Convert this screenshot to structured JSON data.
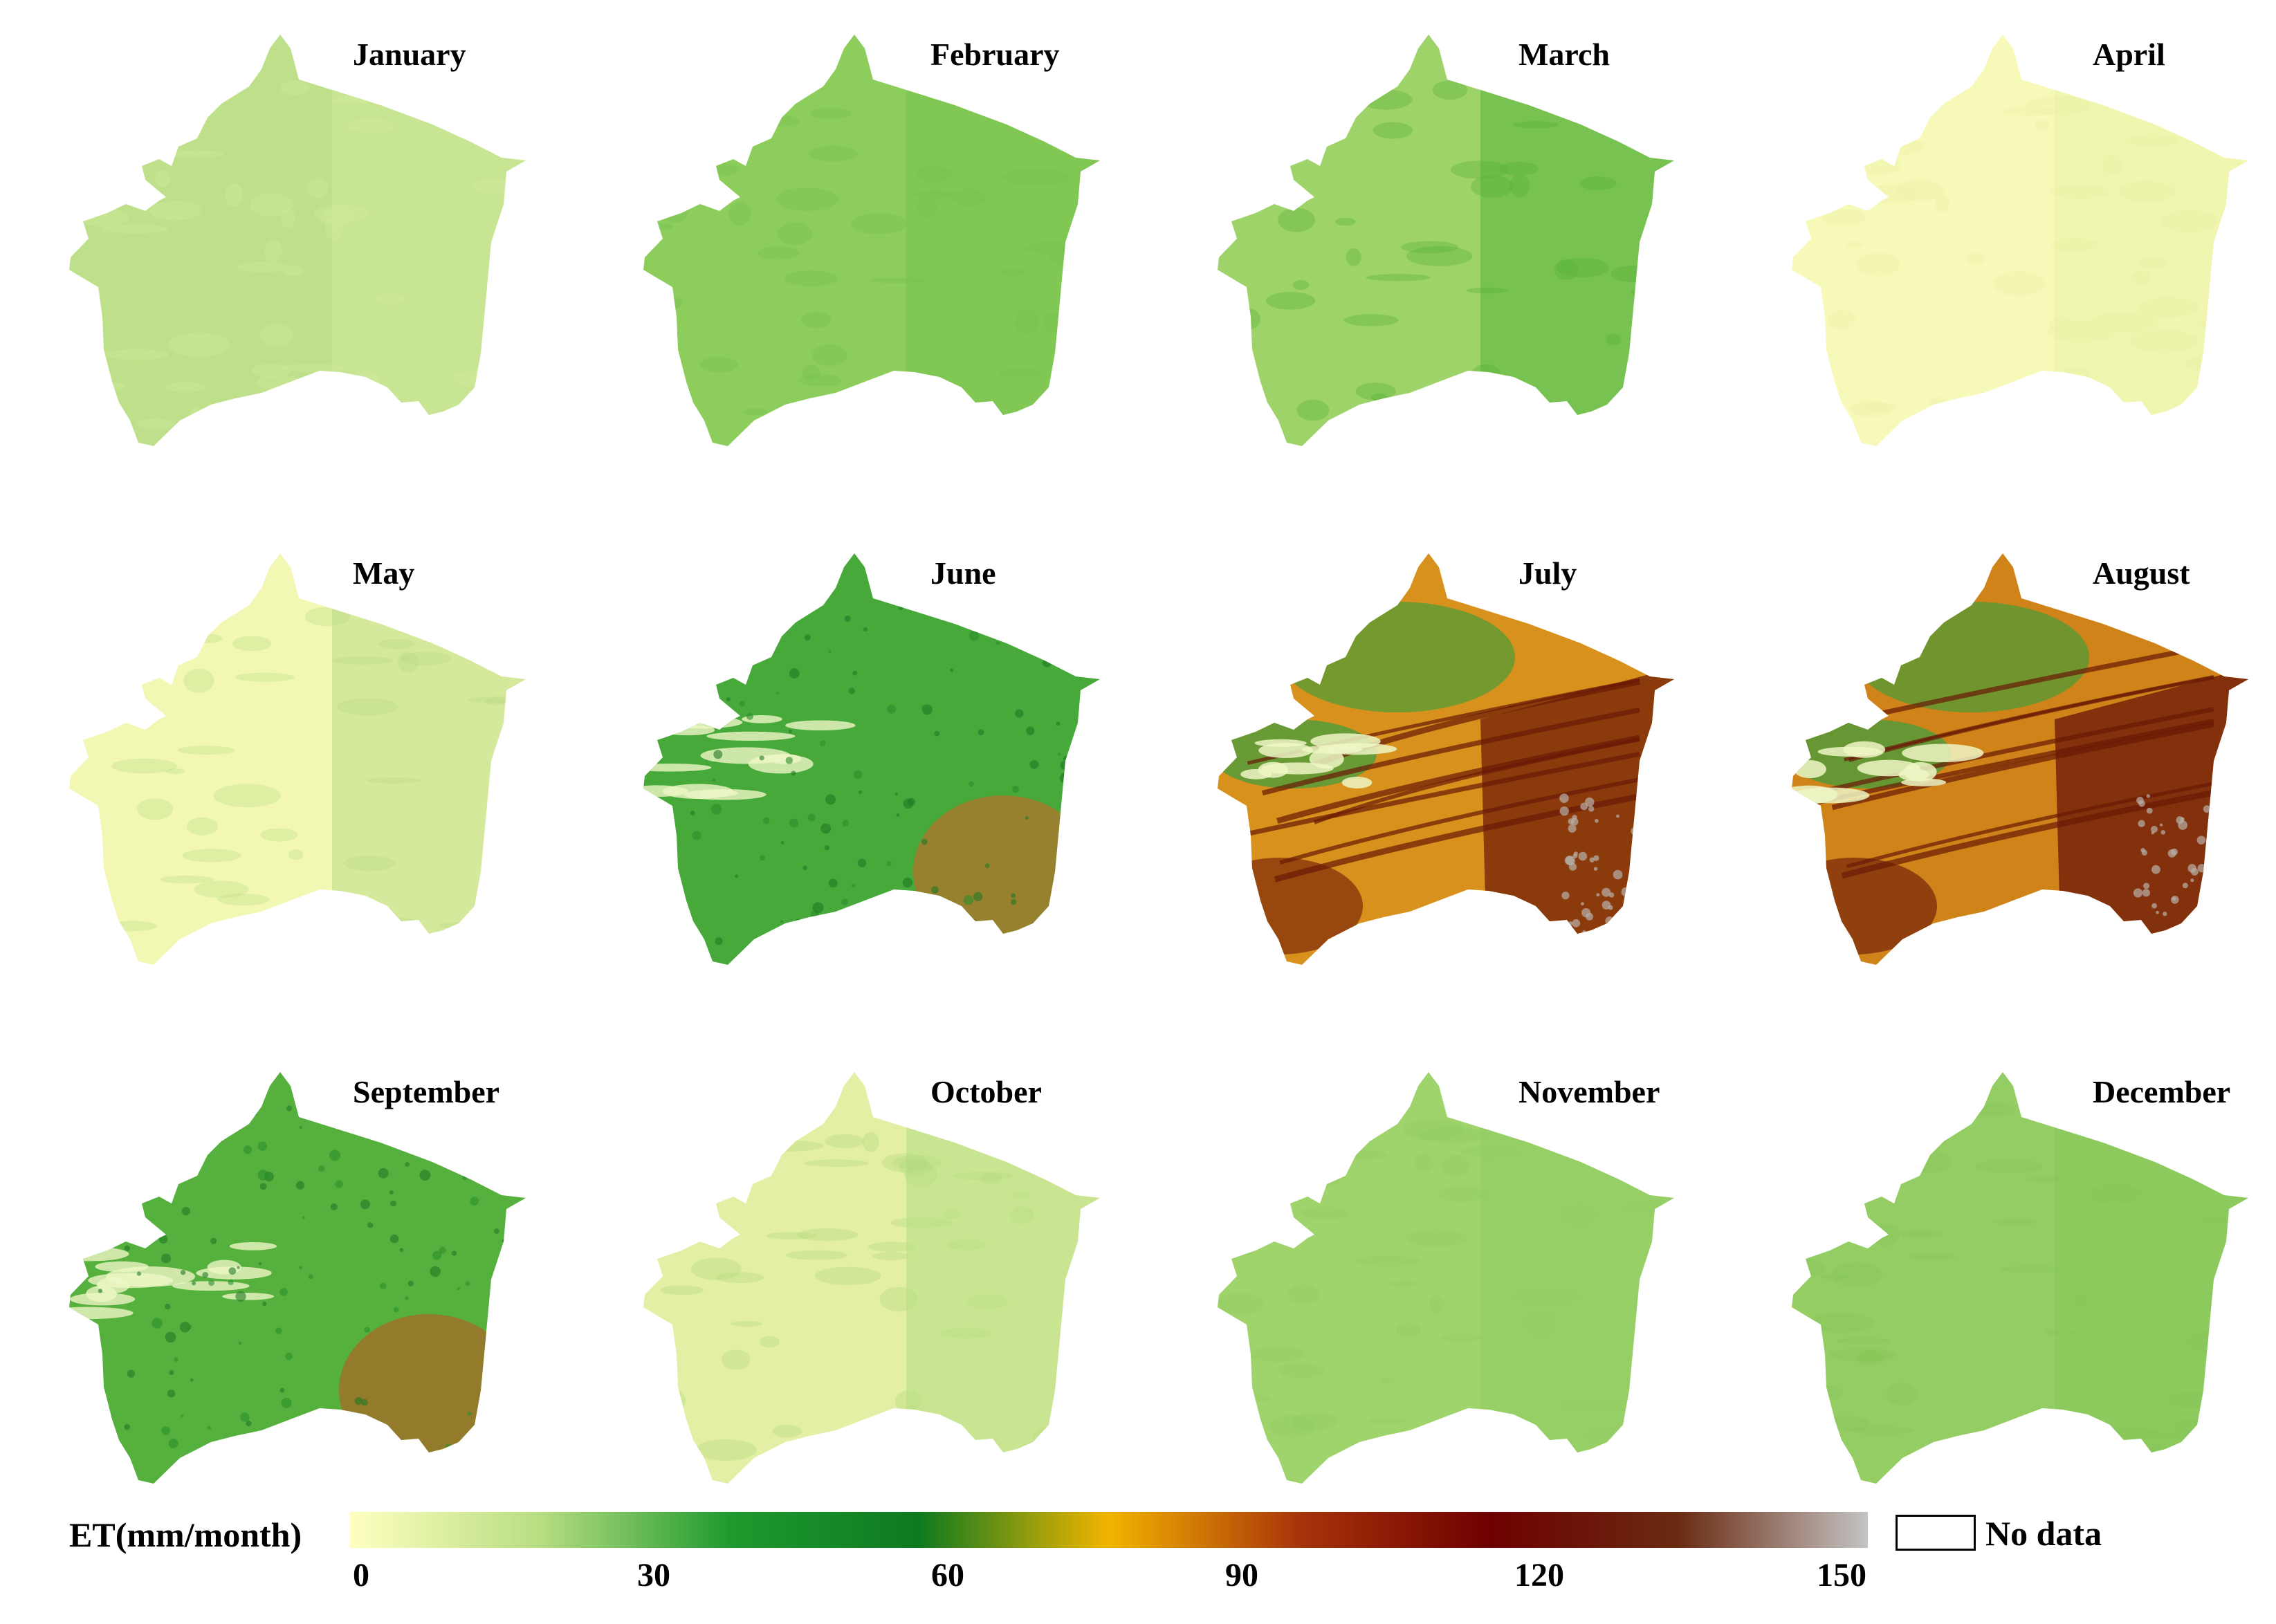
{
  "panels": [
    {
      "title": "January",
      "style": "uniform",
      "base": "#bfe08a",
      "accent": "#d2ea9e"
    },
    {
      "title": "February",
      "style": "uniform",
      "base": "#8ccd5c",
      "accent": "#76c24c"
    },
    {
      "title": "March",
      "style": "uniform",
      "base": "#9ed36a",
      "accent": "#52b137"
    },
    {
      "title": "April",
      "style": "uniform",
      "base": "#f7f9b8",
      "accent": "#eaf2a6"
    },
    {
      "title": "May",
      "style": "uniform",
      "base": "#f3f7b4",
      "accent": "#b7dc83"
    },
    {
      "title": "June",
      "style": "green",
      "base": "#47a93a",
      "accent": "#b1742c"
    },
    {
      "title": "July",
      "style": "hot",
      "base": "#d8911c",
      "accent": "#7e2a08"
    },
    {
      "title": "August",
      "style": "hot",
      "base": "#cf8318",
      "accent": "#75230a"
    },
    {
      "title": "September",
      "style": "green",
      "base": "#56b03e",
      "accent": "#a86a26"
    },
    {
      "title": "October",
      "style": "uniform",
      "base": "#e2efa4",
      "accent": "#b2db7d"
    },
    {
      "title": "November",
      "style": "uniform",
      "base": "#9fd36c",
      "accent": "#8fcb62"
    },
    {
      "title": "December",
      "style": "uniform",
      "base": "#93cd63",
      "accent": "#86c75a"
    }
  ],
  "legend": {
    "label": "ET(mm/month)",
    "ticks": [
      "0",
      "30",
      "60",
      "90",
      "120",
      "150"
    ],
    "nodata_label": "No data",
    "colors": [
      "#ffffc0",
      "#b8de82",
      "#1f9a2e",
      "#0d7a20",
      "#f2b400",
      "#a8340a",
      "#6e0000",
      "#6a2b12",
      "#c4c4c4"
    ]
  }
}
